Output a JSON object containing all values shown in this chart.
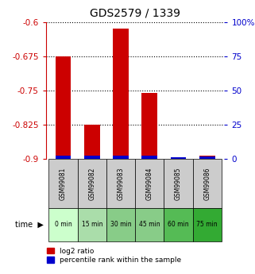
{
  "title": "GDS2579 / 1339",
  "samples": [
    "GSM99081",
    "GSM99082",
    "GSM99083",
    "GSM99084",
    "GSM99085",
    "GSM99086"
  ],
  "time_labels": [
    "0 min",
    "15 min",
    "30 min",
    "45 min",
    "60 min",
    "75 min"
  ],
  "log2_values": [
    -0.675,
    -0.825,
    -0.615,
    -0.755,
    -0.898,
    -0.893
  ],
  "percentile_values": [
    2.5,
    2.5,
    2.5,
    2.5,
    1.0,
    2.0
  ],
  "ymin": -0.9,
  "ymax": -0.6,
  "y_ticks": [
    -0.9,
    -0.825,
    -0.75,
    -0.675,
    -0.6
  ],
  "y_tick_labels": [
    "-0.9",
    "-0.825",
    "-0.75",
    "-0.675",
    "-0.6"
  ],
  "y2_ticks": [
    0,
    25,
    50,
    75,
    100
  ],
  "y2_tick_labels": [
    "0",
    "25",
    "50",
    "75",
    "100%"
  ],
  "bar_color_red": "#cc0000",
  "bar_color_blue": "#0000cc",
  "sample_bg_color": "#cccccc",
  "time_bg_colors": [
    "#ccffcc",
    "#aaddaa",
    "#88cc88",
    "#88cc88",
    "#55bb55",
    "#33aa33"
  ],
  "title_color": "#000000",
  "left_axis_color": "#cc0000",
  "right_axis_color": "#0000cc",
  "bar_width": 0.55,
  "fig_width": 3.21,
  "fig_height": 3.45,
  "dpi": 100
}
